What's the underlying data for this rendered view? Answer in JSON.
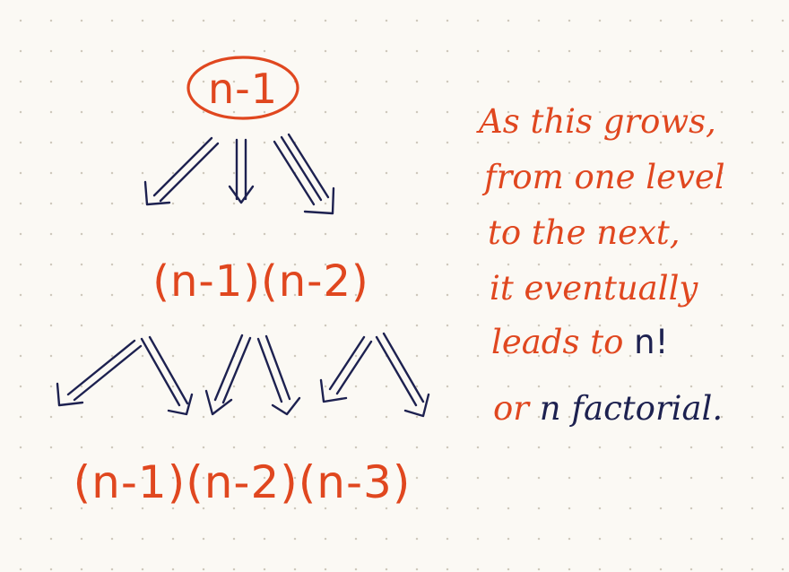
{
  "nodes": {
    "top": "n-1",
    "middle": "(n-1)(n-2)",
    "bottom": "(n-1)(n-2)(n-3)"
  },
  "note": {
    "line1": "As this grows,",
    "line2": "from one level",
    "line3": "to the next,",
    "line4": "it eventually",
    "line5_red": "leads to ",
    "line5_navy": "n!",
    "line6_red_a": "or ",
    "line6_navy_n": "n ",
    "line6_navy_rest": "factorial."
  },
  "colors": {
    "red": "#e0471f",
    "navy": "#1d2150",
    "paper": "#fbf9f4"
  }
}
